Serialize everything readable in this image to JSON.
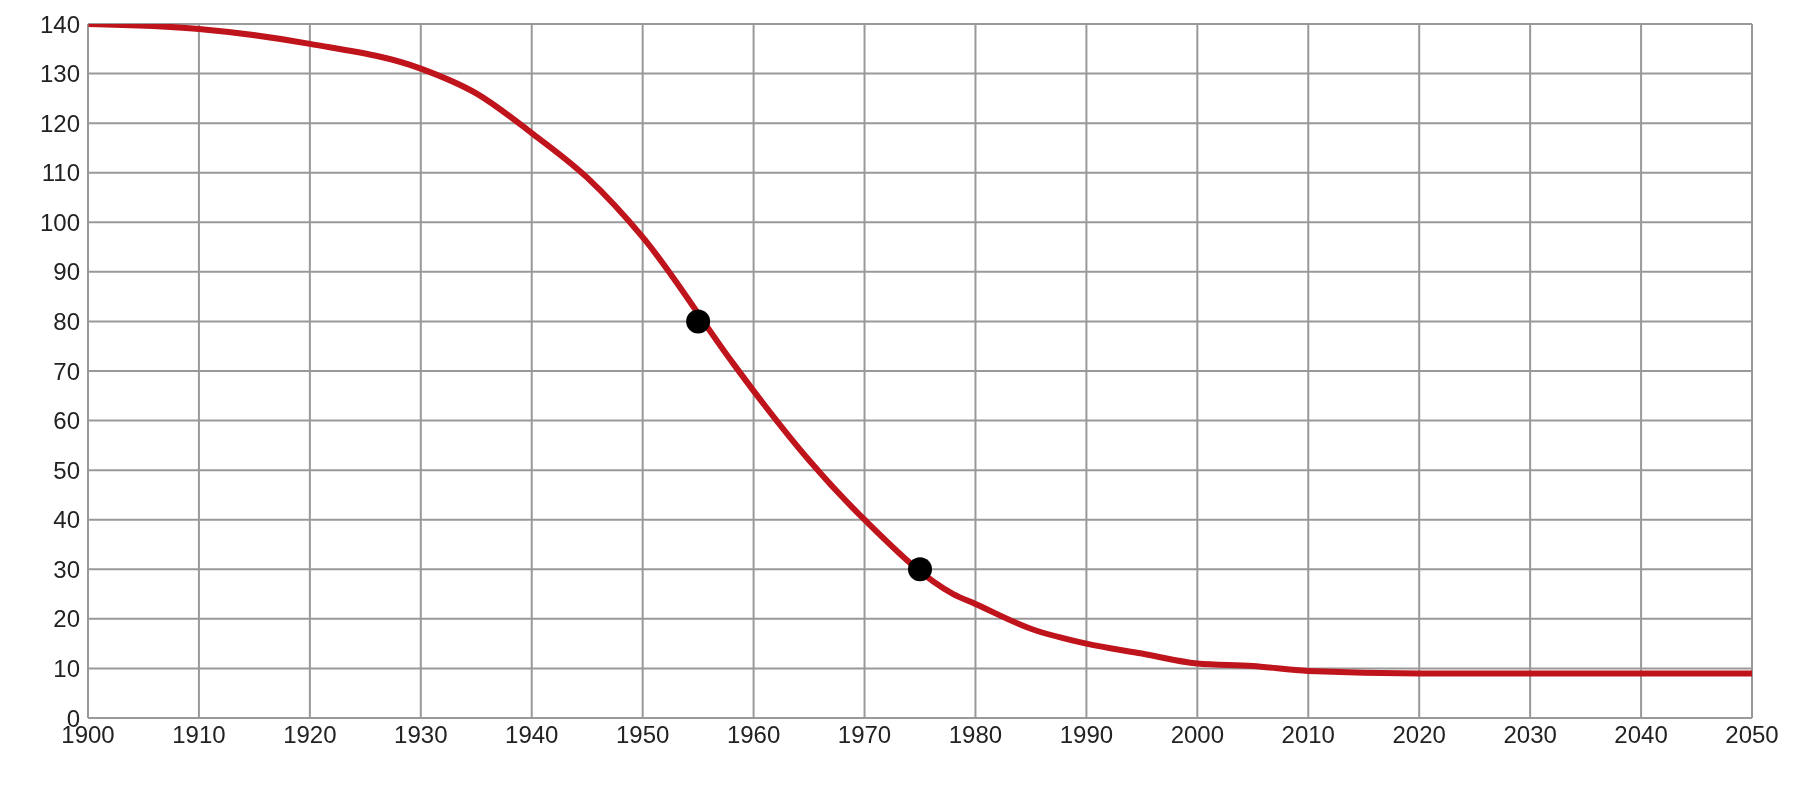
{
  "chart_data": {
    "type": "line",
    "xlim": [
      1900,
      2050
    ],
    "xticks": [
      1900,
      1910,
      1920,
      1930,
      1940,
      1950,
      1960,
      1970,
      1980,
      1990,
      2000,
      2010,
      2020,
      2030,
      2040,
      2050
    ],
    "ylim": [
      0,
      140
    ],
    "yticks": [
      0,
      10,
      20,
      30,
      40,
      50,
      60,
      70,
      80,
      90,
      100,
      110,
      120,
      130,
      140
    ],
    "grid": true,
    "series": [
      {
        "color": "#c0141c",
        "marker": "none",
        "x": [
          1900,
          1910,
          1920,
          1930,
          1935,
          1940,
          1945,
          1950,
          1958,
          1960,
          1965,
          1970,
          1978,
          1980,
          1985,
          1990,
          1995,
          2000,
          2005,
          2010,
          2020,
          2030,
          2040,
          2050
        ],
        "values": [
          140,
          139,
          136,
          131,
          126,
          118,
          109,
          97,
          72,
          66,
          52,
          40,
          25,
          23,
          18,
          15,
          13,
          11,
          10.5,
          9.5,
          9,
          9,
          9,
          9
        ]
      },
      {
        "type": "scatter",
        "color": "#000000",
        "marker": "circle",
        "x": [
          1955,
          1975
        ],
        "values": [
          80,
          30
        ]
      }
    ]
  }
}
